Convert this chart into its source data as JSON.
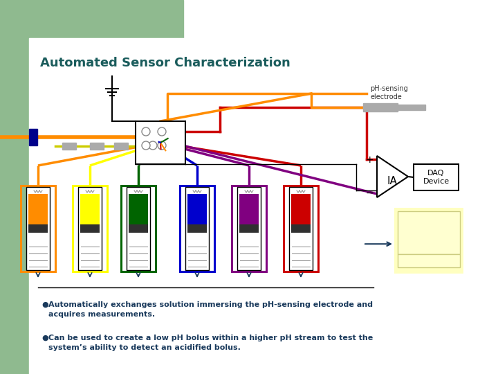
{
  "title": "Automated Sensor Characterization",
  "title_color": "#1a5c5c",
  "title_fontsize": 13,
  "bg_color": "#ffffff",
  "left_bar_color": "#8fba8f",
  "top_bar_color": "#8fba8f",
  "bullet_text_1a": "Automatically exchanges solution immersing the pH-sensing electrode and",
  "bullet_text_1b": "acquires measurements.",
  "bullet_text_2a": "Can be used to create a low pH bolus within a higher pH stream to test the",
  "bullet_text_2b": "system’s ability to detect an acidified bolus.",
  "text_color": "#1a3a5c",
  "syringe_colors": [
    "#ff8c00",
    "#ffff00",
    "#006400",
    "#0000cd",
    "#800080",
    "#cc0000"
  ],
  "wire_colors": [
    "#ff8c00",
    "#ffff00",
    "#006400",
    "#0000cd",
    "#800080",
    "#cc0000"
  ],
  "ph_label": "pH-sensing\nelectrode",
  "ia_label": "IA",
  "daq_label": "DAQ\nDevice"
}
